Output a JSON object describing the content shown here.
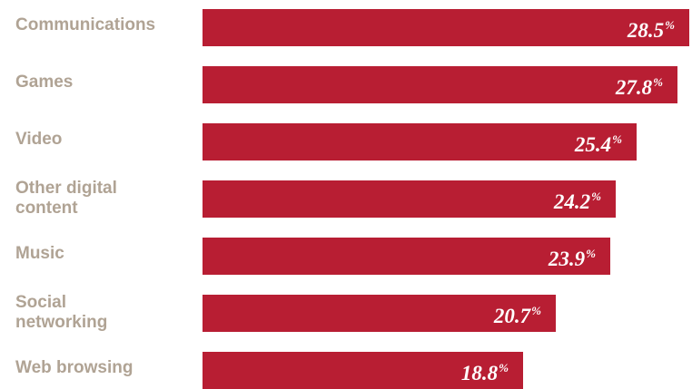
{
  "chart_data": {
    "type": "bar",
    "orientation": "horizontal",
    "categories": [
      "Communications",
      "Games",
      "Video",
      "Other digital content",
      "Music",
      "Social networking",
      "Web browsing"
    ],
    "category_lines": [
      [
        "Communications"
      ],
      [
        "Games"
      ],
      [
        "Video"
      ],
      [
        "Other digital",
        "content"
      ],
      [
        "Music"
      ],
      [
        "Social",
        "networking"
      ],
      [
        "Web browsing"
      ]
    ],
    "values": [
      28.5,
      27.8,
      25.4,
      24.2,
      23.9,
      20.7,
      18.8
    ],
    "value_labels": [
      "28.5",
      "27.8",
      "25.4",
      "24.2",
      "23.9",
      "20.7",
      "18.8"
    ],
    "unit": "%",
    "bar_color": "#b81e33",
    "label_color": "#b0a394",
    "value_label_color": "#ffffff",
    "title": "",
    "xlabel": "",
    "ylabel": "",
    "grid": false,
    "legend": "none"
  }
}
